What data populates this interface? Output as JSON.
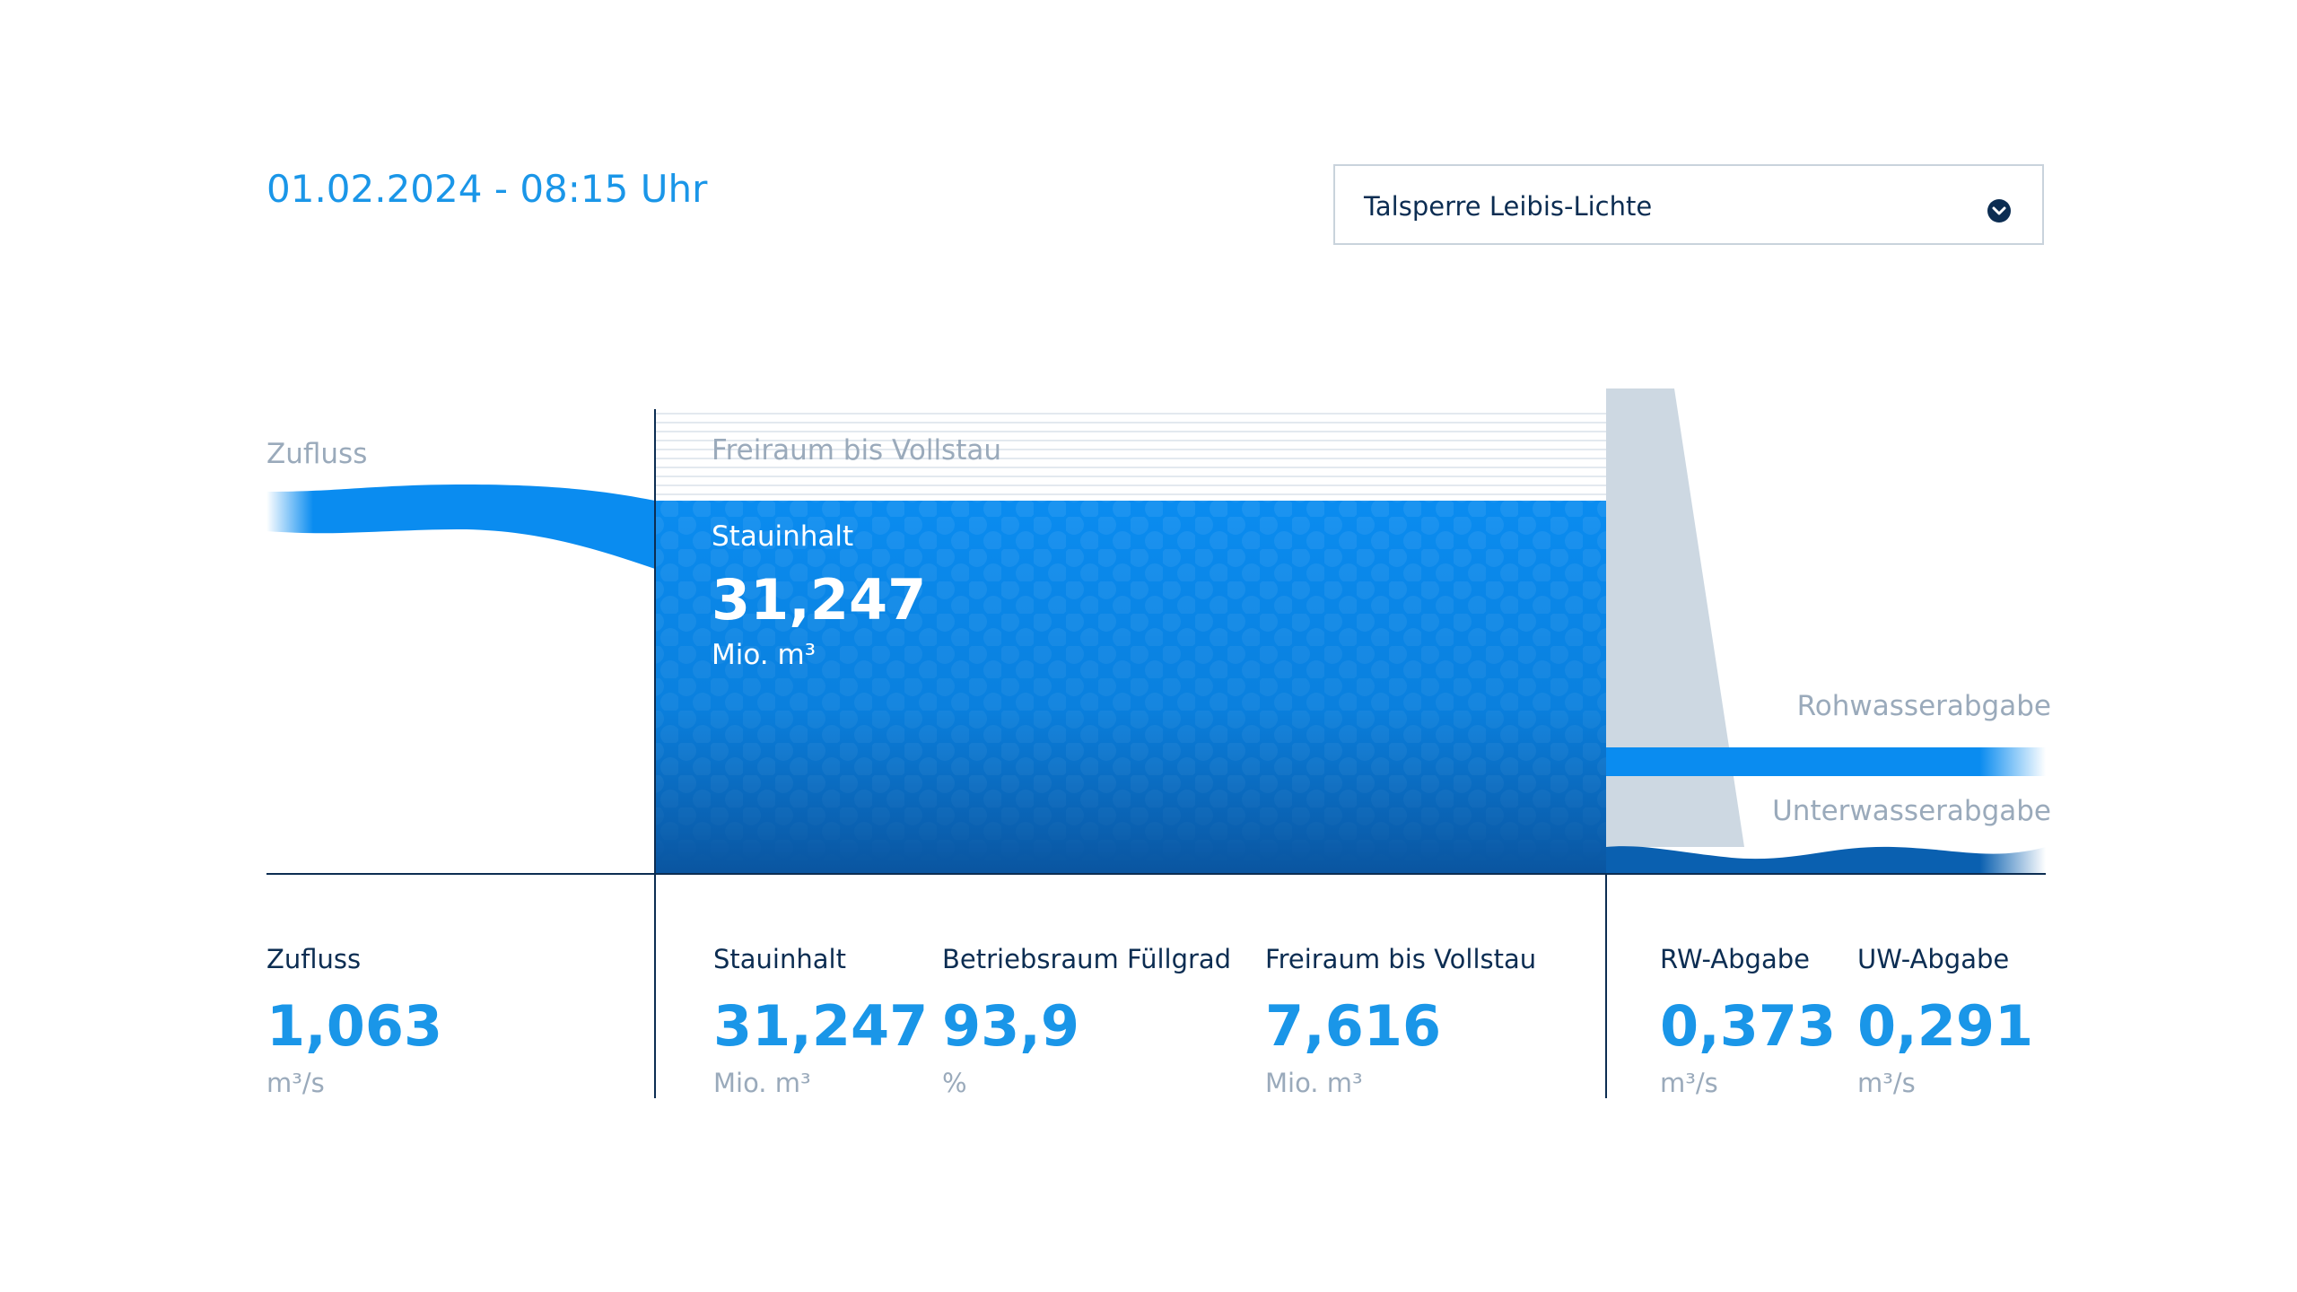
{
  "header": {
    "timestamp": "01.02.2024 - 08:15 Uhr",
    "dam_select": {
      "selected": "Talsperre Leibis-Lichte",
      "icon": "chevron-down-circle-icon"
    }
  },
  "diagram": {
    "inflow_label": "Zufluss",
    "free_space_label": "Freiraum bis Vollstau",
    "reservoir": {
      "title": "Stauinhalt",
      "value": "31,247",
      "unit": "Mio. m³"
    },
    "raw_water_label": "Rohwasserabgabe",
    "underwater_label": "Unterwasserabgabe",
    "colors": {
      "water": "#0a8cf0",
      "water_deep": "#0a5aa0",
      "dam": "#cdd8e2",
      "free_space_lines": "#e3e9ef",
      "accent": "#1a96e8",
      "dark": "#0c2d52",
      "muted": "#9aaabb"
    }
  },
  "stats": {
    "inflow": {
      "label": "Zufluss",
      "value": "1,063",
      "unit": "m³/s"
    },
    "storage": {
      "label": "Stauinhalt",
      "value": "31,247",
      "unit": "Mio. m³"
    },
    "fill": {
      "label": "Betriebsraum Füllgrad",
      "value": "93,9",
      "unit": "%"
    },
    "free": {
      "label": "Freiraum bis Vollstau",
      "value": "7,616",
      "unit": "Mio. m³"
    },
    "rw": {
      "label": "RW-Abgabe",
      "value": "0,373",
      "unit": "m³/s"
    },
    "uw": {
      "label": "UW-Abgabe",
      "value": "0,291",
      "unit": "m³/s"
    }
  }
}
